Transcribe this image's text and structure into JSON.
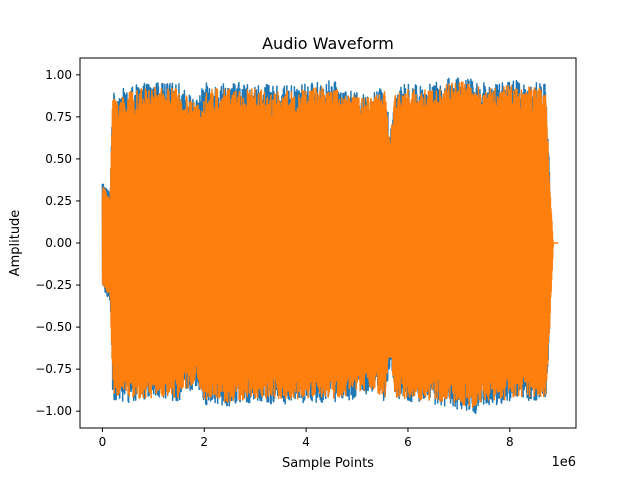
{
  "chart_data": {
    "type": "line",
    "title": "Audio Waveform",
    "xlabel": "Sample Points",
    "ylabel": "Amplitude",
    "x_offset_label": "1e6",
    "xlim": [
      -0.44,
      9.3
    ],
    "ylim": [
      -1.1,
      1.1
    ],
    "x_ticks": [
      0,
      2,
      4,
      6,
      8
    ],
    "x_tick_labels": [
      "0",
      "2",
      "4",
      "6",
      "8"
    ],
    "y_ticks": [
      -1.0,
      -0.75,
      -0.5,
      -0.25,
      0.0,
      0.25,
      0.5,
      0.75,
      1.0
    ],
    "y_tick_labels": [
      "−1.00",
      "−0.75",
      "−0.50",
      "−0.25",
      "0.00",
      "0.25",
      "0.50",
      "0.75",
      "1.00"
    ],
    "grid": false,
    "legend": "none",
    "series": [
      {
        "color": "#1f77b4",
        "envelope": [
          {
            "x": 0.0,
            "min": -0.28,
            "max": 0.37
          },
          {
            "x": 0.15,
            "min": -0.35,
            "max": 0.3
          },
          {
            "x": 0.2,
            "min": -0.93,
            "max": 0.89
          },
          {
            "x": 0.5,
            "min": -0.95,
            "max": 0.93
          },
          {
            "x": 1.0,
            "min": -0.93,
            "max": 0.96
          },
          {
            "x": 1.5,
            "min": -0.94,
            "max": 0.95
          },
          {
            "x": 1.85,
            "min": -0.85,
            "max": 0.85
          },
          {
            "x": 2.0,
            "min": -0.96,
            "max": 0.95
          },
          {
            "x": 2.5,
            "min": -0.97,
            "max": 0.96
          },
          {
            "x": 3.0,
            "min": -0.95,
            "max": 0.95
          },
          {
            "x": 3.5,
            "min": -0.96,
            "max": 0.93
          },
          {
            "x": 4.0,
            "min": -0.95,
            "max": 0.95
          },
          {
            "x": 4.5,
            "min": -0.95,
            "max": 0.97
          },
          {
            "x": 4.9,
            "min": -0.93,
            "max": 0.9
          },
          {
            "x": 5.2,
            "min": -0.9,
            "max": 0.88
          },
          {
            "x": 5.55,
            "min": -0.95,
            "max": 0.94
          },
          {
            "x": 5.65,
            "min": -0.73,
            "max": 0.65
          },
          {
            "x": 5.75,
            "min": -0.94,
            "max": 0.93
          },
          {
            "x": 6.0,
            "min": -0.95,
            "max": 0.95
          },
          {
            "x": 6.5,
            "min": -0.96,
            "max": 0.95
          },
          {
            "x": 7.0,
            "min": -0.99,
            "max": 1.0
          },
          {
            "x": 7.3,
            "min": -1.02,
            "max": 0.97
          },
          {
            "x": 7.5,
            "min": -0.97,
            "max": 0.96
          },
          {
            "x": 8.0,
            "min": -0.95,
            "max": 0.97
          },
          {
            "x": 8.5,
            "min": -0.95,
            "max": 0.96
          },
          {
            "x": 8.7,
            "min": -0.95,
            "max": 0.95
          },
          {
            "x": 8.78,
            "min": -0.55,
            "max": 0.45
          }
        ]
      },
      {
        "color": "#ff7f0e",
        "envelope": [
          {
            "x": 0.0,
            "min": -0.25,
            "max": 0.34
          },
          {
            "x": 0.15,
            "min": -0.32,
            "max": 0.28
          },
          {
            "x": 0.2,
            "min": -0.91,
            "max": 0.87
          },
          {
            "x": 0.5,
            "min": -0.93,
            "max": 0.9
          },
          {
            "x": 1.0,
            "min": -0.92,
            "max": 0.93
          },
          {
            "x": 1.5,
            "min": -0.92,
            "max": 0.92
          },
          {
            "x": 1.85,
            "min": -0.82,
            "max": 0.82
          },
          {
            "x": 2.0,
            "min": -0.93,
            "max": 0.92
          },
          {
            "x": 2.5,
            "min": -0.95,
            "max": 0.93
          },
          {
            "x": 3.0,
            "min": -0.93,
            "max": 0.92
          },
          {
            "x": 3.5,
            "min": -0.93,
            "max": 0.9
          },
          {
            "x": 4.0,
            "min": -0.93,
            "max": 0.92
          },
          {
            "x": 4.5,
            "min": -0.93,
            "max": 0.94
          },
          {
            "x": 4.9,
            "min": -0.9,
            "max": 0.88
          },
          {
            "x": 5.2,
            "min": -0.88,
            "max": 0.86
          },
          {
            "x": 5.55,
            "min": -0.92,
            "max": 0.92
          },
          {
            "x": 5.65,
            "min": -0.7,
            "max": 0.62
          },
          {
            "x": 5.75,
            "min": -0.92,
            "max": 0.9
          },
          {
            "x": 6.0,
            "min": -0.93,
            "max": 0.92
          },
          {
            "x": 6.5,
            "min": -0.94,
            "max": 0.92
          },
          {
            "x": 7.0,
            "min": -0.96,
            "max": 0.97
          },
          {
            "x": 7.3,
            "min": -0.98,
            "max": 0.94
          },
          {
            "x": 7.5,
            "min": -0.94,
            "max": 0.93
          },
          {
            "x": 8.0,
            "min": -0.93,
            "max": 0.94
          },
          {
            "x": 8.5,
            "min": -0.93,
            "max": 0.93
          },
          {
            "x": 8.7,
            "min": -0.92,
            "max": 0.92
          },
          {
            "x": 8.78,
            "min": -0.52,
            "max": 0.4
          },
          {
            "x": 8.85,
            "min": 0.0,
            "max": 0.0
          },
          {
            "x": 8.95,
            "min": 0.0,
            "max": 0.0
          }
        ]
      }
    ]
  }
}
